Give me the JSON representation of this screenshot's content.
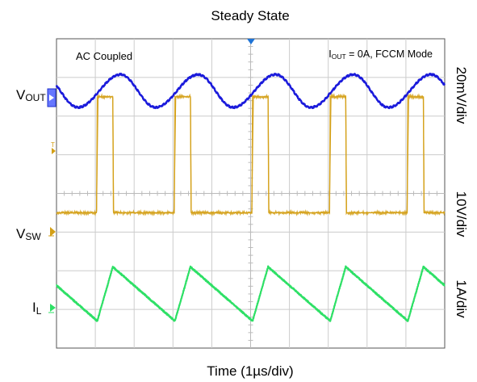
{
  "chart_data": {
    "type": "line",
    "title": "Steady State",
    "xlabel": "Time (1µs/div)",
    "x_unit": "µs",
    "x_per_div": 1,
    "xlim": [
      0,
      10
    ],
    "divisions": {
      "x": 10,
      "y": 8
    },
    "grid": true,
    "annotations": {
      "left": "AC Coupled",
      "right_main": "I",
      "right_sub": "OUT",
      "right_rest": " = 0A, FCCM Mode"
    },
    "switching_period_us": 2.0,
    "channels": [
      {
        "id": "vout",
        "label_main": "V",
        "label_sub": "OUT",
        "scale_label": "20mV/div",
        "color": "#1a1adb",
        "min_time_us": [
          0.55,
          2.55,
          4.55,
          6.55,
          8.55
        ],
        "max_time_us": [
          1.65,
          3.65,
          5.65,
          7.65,
          9.65
        ],
        "peak_to_peak_div": 0.85
      },
      {
        "id": "vsw",
        "label_main": "V",
        "label_sub": "SW",
        "scale_label": "10V/div",
        "color": "#d4a017",
        "high_from_us": [
          1.05,
          3.05,
          5.05,
          7.05,
          9.05
        ],
        "high_to_us": [
          1.45,
          3.45,
          5.45,
          7.45,
          9.45
        ],
        "high_level_div": 3.0
      },
      {
        "id": "il",
        "label_main": "I",
        "label_sub": "L",
        "scale_label": "1A/div",
        "color": "#2ee066",
        "valley_time_us": [
          1.05,
          3.05,
          5.05,
          7.05,
          9.05
        ],
        "peak_time_us": [
          1.45,
          3.45,
          5.45,
          7.45,
          9.45
        ],
        "ripple_div": 1.4
      }
    ]
  }
}
